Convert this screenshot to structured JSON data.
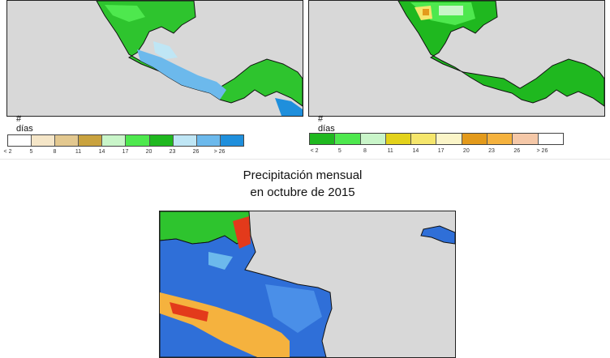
{
  "left_panel": {
    "units_label": "# días",
    "legend": {
      "ticks": [
        "< 2",
        "5",
        "8",
        "11",
        "14",
        "17",
        "20",
        "23",
        "26",
        "> 26"
      ],
      "colors": [
        "#ffffff",
        "#f5e6c8",
        "#e3c88f",
        "#c9a23e",
        "#c9f5c9",
        "#4ee84e",
        "#1fb81f",
        "#bfe6f5",
        "#6cb9ec",
        "#1f8fdc"
      ]
    }
  },
  "right_panel": {
    "units_label": "# días",
    "legend": {
      "ticks": [
        "< 2",
        "5",
        "8",
        "11",
        "14",
        "17",
        "20",
        "23",
        "26",
        "> 26"
      ],
      "colors": [
        "#1fb81f",
        "#4ee84e",
        "#c9f5c9",
        "#e3d21b",
        "#f5e66c",
        "#fbf5c8",
        "#e39a1b",
        "#f5b23e",
        "#f5c8a8",
        "#ffffff"
      ]
    }
  },
  "bottom_panel": {
    "title_line1": "Precipitación mensual",
    "title_line2": "en octubre de 2015"
  }
}
